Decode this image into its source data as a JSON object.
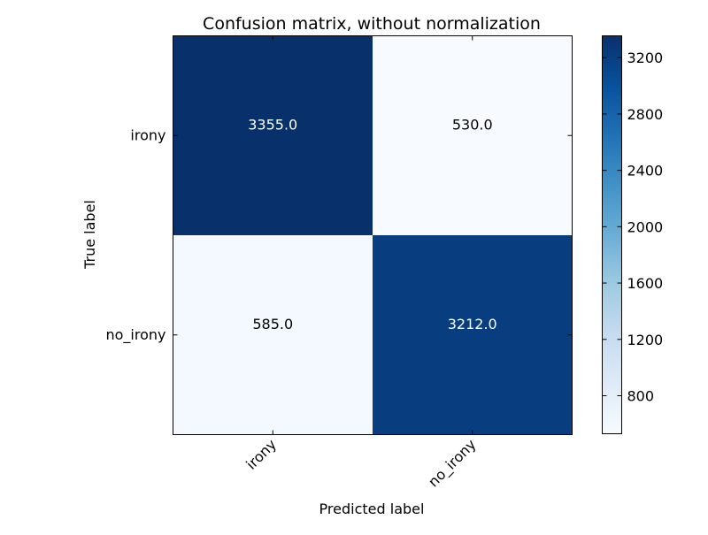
{
  "chart_data": {
    "type": "heatmap",
    "title": "Confusion matrix, without normalization",
    "xlabel": "Predicted label",
    "ylabel": "True label",
    "x_categories": [
      "irony",
      "no_irony"
    ],
    "y_categories": [
      "irony",
      "no_irony"
    ],
    "values": [
      [
        3355.0,
        530.0
      ],
      [
        585.0,
        3212.0
      ]
    ],
    "cell_labels": [
      [
        "3355.0",
        "530.0"
      ],
      [
        "585.0",
        "3212.0"
      ]
    ],
    "colormap": "Blues",
    "color_range": [
      530,
      3355
    ],
    "colorbar_ticks": [
      800,
      1200,
      1600,
      2000,
      2400,
      2800,
      3200
    ],
    "x_tick_rotation": "45 degrees",
    "grid": false
  },
  "colors": {
    "blues": [
      "#f7fbff",
      "#deebf7",
      "#c6dbef",
      "#9ecae1",
      "#6baed6",
      "#4292c6",
      "#2171b5",
      "#08519c",
      "#08306b"
    ],
    "text_dark": "#000000",
    "text_light": "#ffffff"
  }
}
